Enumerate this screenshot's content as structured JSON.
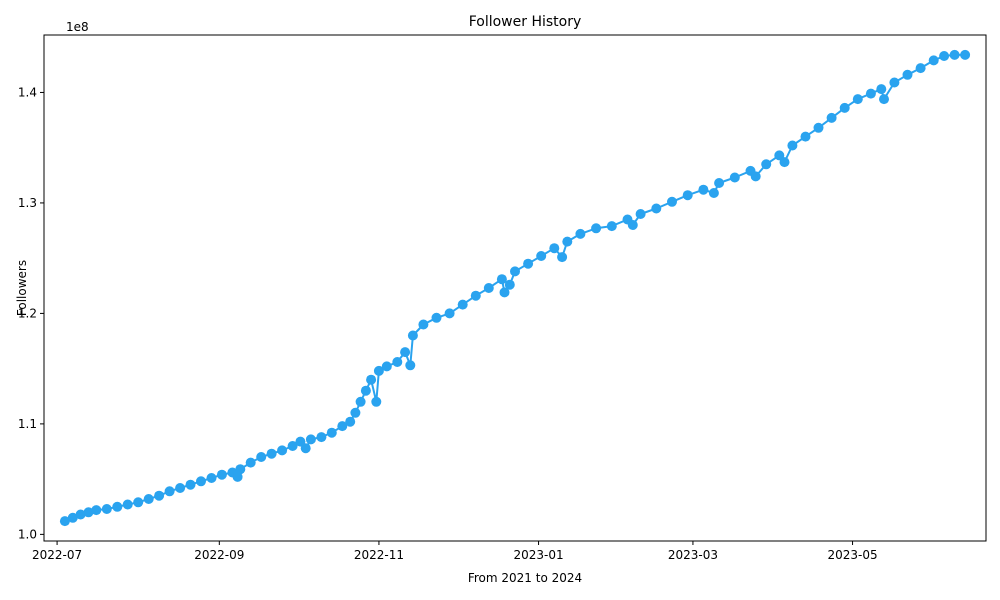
{
  "chart_data": {
    "type": "line",
    "title": "Follower History",
    "xlabel": "From 2021 to 2024",
    "ylabel": "Followers",
    "y_offset_label": "1e8",
    "x_range": [
      "2022-06-26",
      "2023-06-21"
    ],
    "ylim": [
      99400000,
      145200000
    ],
    "x_ticks": [
      {
        "date": "2022-07-01",
        "label": "2022-07"
      },
      {
        "date": "2022-09-01",
        "label": "2022-09"
      },
      {
        "date": "2022-11-01",
        "label": "2022-11"
      },
      {
        "date": "2023-01-01",
        "label": "2023-01"
      },
      {
        "date": "2023-03-01",
        "label": "2023-03"
      },
      {
        "date": "2023-05-01",
        "label": "2023-05"
      }
    ],
    "y_ticks": [
      {
        "value": 100000000,
        "label": "1.0"
      },
      {
        "value": 110000000,
        "label": "1.1"
      },
      {
        "value": 120000000,
        "label": "1.2"
      },
      {
        "value": 130000000,
        "label": "1.3"
      },
      {
        "value": 140000000,
        "label": "1.4"
      }
    ],
    "grid": false,
    "legend": "none",
    "series": [
      {
        "color": "#2aa3ef",
        "marker": "circle",
        "points": [
          [
            "2022-07-04",
            101200000
          ],
          [
            "2022-07-07",
            101500000
          ],
          [
            "2022-07-10",
            101800000
          ],
          [
            "2022-07-13",
            102000000
          ],
          [
            "2022-07-16",
            102200000
          ],
          [
            "2022-07-20",
            102300000
          ],
          [
            "2022-07-24",
            102500000
          ],
          [
            "2022-07-28",
            102700000
          ],
          [
            "2022-08-01",
            102900000
          ],
          [
            "2022-08-05",
            103200000
          ],
          [
            "2022-08-09",
            103500000
          ],
          [
            "2022-08-13",
            103900000
          ],
          [
            "2022-08-17",
            104200000
          ],
          [
            "2022-08-21",
            104500000
          ],
          [
            "2022-08-25",
            104800000
          ],
          [
            "2022-08-29",
            105100000
          ],
          [
            "2022-09-02",
            105400000
          ],
          [
            "2022-09-06",
            105600000
          ],
          [
            "2022-09-08",
            105200000
          ],
          [
            "2022-09-09",
            105900000
          ],
          [
            "2022-09-13",
            106500000
          ],
          [
            "2022-09-17",
            107000000
          ],
          [
            "2022-09-21",
            107300000
          ],
          [
            "2022-09-25",
            107600000
          ],
          [
            "2022-09-29",
            108000000
          ],
          [
            "2022-10-02",
            108400000
          ],
          [
            "2022-10-04",
            107800000
          ],
          [
            "2022-10-06",
            108600000
          ],
          [
            "2022-10-10",
            108800000
          ],
          [
            "2022-10-14",
            109200000
          ],
          [
            "2022-10-18",
            109800000
          ],
          [
            "2022-10-21",
            110200000
          ],
          [
            "2022-10-23",
            111000000
          ],
          [
            "2022-10-25",
            112000000
          ],
          [
            "2022-10-27",
            113000000
          ],
          [
            "2022-10-29",
            114000000
          ],
          [
            "2022-10-31",
            112000000
          ],
          [
            "2022-11-01",
            114800000
          ],
          [
            "2022-11-04",
            115200000
          ],
          [
            "2022-11-08",
            115600000
          ],
          [
            "2022-11-11",
            116500000
          ],
          [
            "2022-11-13",
            115300000
          ],
          [
            "2022-11-14",
            118000000
          ],
          [
            "2022-11-18",
            119000000
          ],
          [
            "2022-11-23",
            119600000
          ],
          [
            "2022-11-28",
            120000000
          ],
          [
            "2022-12-03",
            120800000
          ],
          [
            "2022-12-08",
            121600000
          ],
          [
            "2022-12-13",
            122300000
          ],
          [
            "2022-12-18",
            123100000
          ],
          [
            "2022-12-19",
            121900000
          ],
          [
            "2022-12-21",
            122600000
          ],
          [
            "2022-12-23",
            123800000
          ],
          [
            "2022-12-28",
            124500000
          ],
          [
            "2023-01-02",
            125200000
          ],
          [
            "2023-01-07",
            125900000
          ],
          [
            "2023-01-10",
            125100000
          ],
          [
            "2023-01-12",
            126500000
          ],
          [
            "2023-01-17",
            127200000
          ],
          [
            "2023-01-23",
            127700000
          ],
          [
            "2023-01-29",
            127900000
          ],
          [
            "2023-02-04",
            128500000
          ],
          [
            "2023-02-06",
            128000000
          ],
          [
            "2023-02-09",
            129000000
          ],
          [
            "2023-02-15",
            129500000
          ],
          [
            "2023-02-21",
            130100000
          ],
          [
            "2023-02-27",
            130700000
          ],
          [
            "2023-03-05",
            131200000
          ],
          [
            "2023-03-09",
            130900000
          ],
          [
            "2023-03-11",
            131800000
          ],
          [
            "2023-03-17",
            132300000
          ],
          [
            "2023-03-23",
            132900000
          ],
          [
            "2023-03-25",
            132400000
          ],
          [
            "2023-03-29",
            133500000
          ],
          [
            "2023-04-03",
            134300000
          ],
          [
            "2023-04-05",
            133700000
          ],
          [
            "2023-04-08",
            135200000
          ],
          [
            "2023-04-13",
            136000000
          ],
          [
            "2023-04-18",
            136800000
          ],
          [
            "2023-04-23",
            137700000
          ],
          [
            "2023-04-28",
            138600000
          ],
          [
            "2023-05-03",
            139400000
          ],
          [
            "2023-05-08",
            139900000
          ],
          [
            "2023-05-12",
            140300000
          ],
          [
            "2023-05-13",
            139400000
          ],
          [
            "2023-05-17",
            140900000
          ],
          [
            "2023-05-22",
            141600000
          ],
          [
            "2023-05-27",
            142200000
          ],
          [
            "2023-06-01",
            142900000
          ],
          [
            "2023-06-05",
            143300000
          ],
          [
            "2023-06-09",
            143400000
          ],
          [
            "2023-06-13",
            143400000
          ]
        ]
      }
    ]
  }
}
